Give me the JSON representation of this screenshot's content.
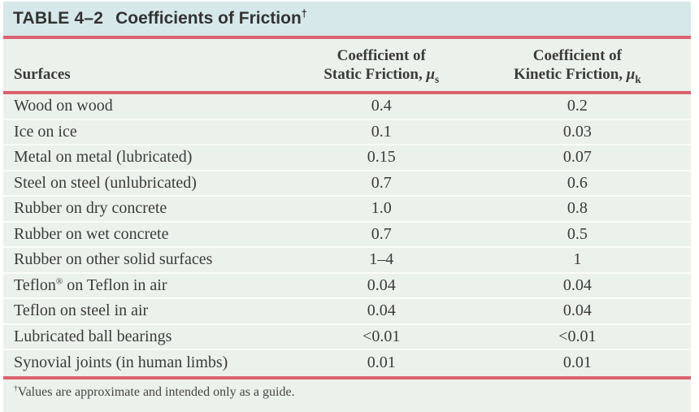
{
  "title": {
    "label": "TABLE 4–2",
    "text": "Coefficients of Friction",
    "dagger": "†"
  },
  "header": {
    "surfaces": "Surfaces",
    "static": {
      "line1": "Coefficient of",
      "line2": "Static Friction, ",
      "symbol": "μ",
      "subscript": "s"
    },
    "kinetic": {
      "line1": "Coefficient of",
      "line2": "Kinetic Friction, ",
      "symbol": "μ",
      "subscript": "k"
    }
  },
  "rows": [
    {
      "surface": "Wood on wood",
      "static": "0.4",
      "kinetic": "0.2"
    },
    {
      "surface": "Ice on ice",
      "static": "0.1",
      "kinetic": "0.03"
    },
    {
      "surface": "Metal on metal (lubricated)",
      "static": "0.15",
      "kinetic": "0.07"
    },
    {
      "surface": "Steel on steel (unlubricated)",
      "static": "0.7",
      "kinetic": "0.6"
    },
    {
      "surface": "Rubber on dry concrete",
      "static": "1.0",
      "kinetic": "0.8"
    },
    {
      "surface": "Rubber on wet concrete",
      "static": "0.7",
      "kinetic": "0.5"
    },
    {
      "surface": "Rubber on other solid surfaces",
      "static": "1–4",
      "kinetic": "1"
    },
    {
      "surface": "Teflon® on Teflon in air",
      "static": "0.04",
      "kinetic": "0.04"
    },
    {
      "surface": "Teflon on steel in air",
      "static": "0.04",
      "kinetic": "0.04"
    },
    {
      "surface": "Lubricated ball bearings",
      "static": "<0.01",
      "kinetic": "<0.01"
    },
    {
      "surface": "Synovial joints (in human limbs)",
      "static": "0.01",
      "kinetic": "0.01"
    }
  ],
  "footnote": {
    "dagger": "†",
    "text": "Values are approximate and intended only as a guide."
  },
  "colors": {
    "title_bg": "#d6e8e9",
    "row_bg": "#ebf1eb",
    "rule_red": "#dc6170",
    "separator": "#fafcf8",
    "text": "#3b3b3b"
  }
}
